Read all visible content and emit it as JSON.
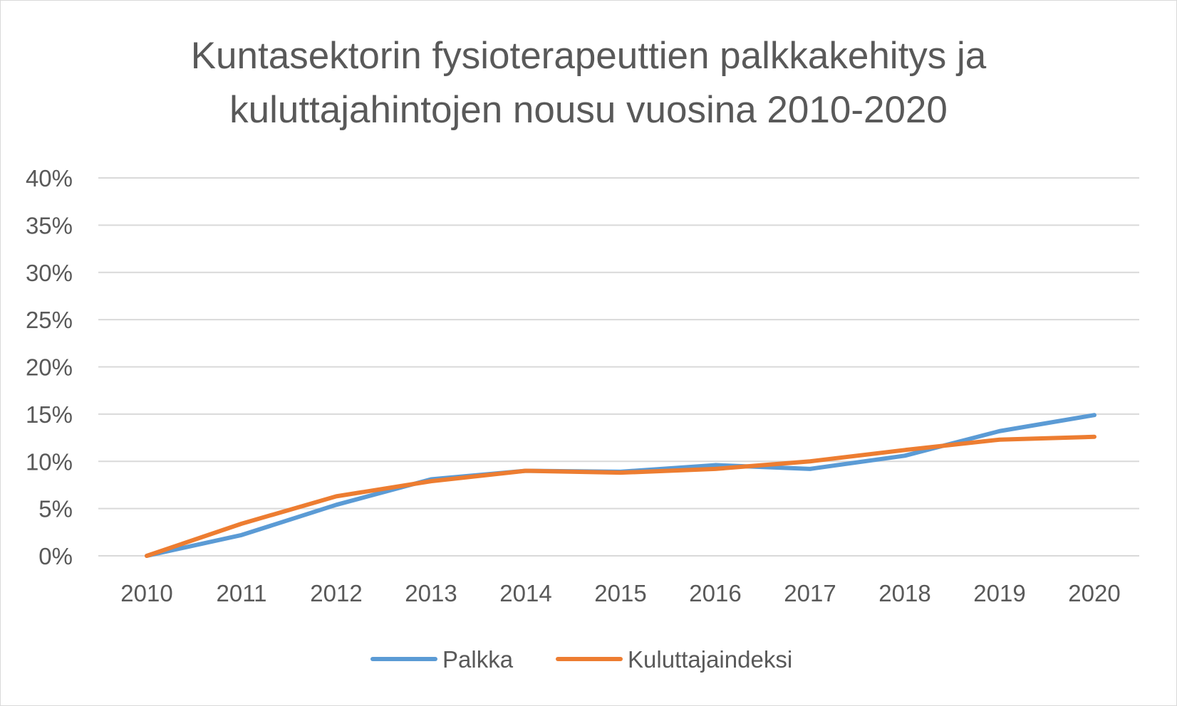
{
  "chart_data": {
    "type": "line",
    "title_lines": [
      "Kuntasektorin fysioterapeuttien palkkakehitys ja",
      "kuluttajahintojen nousu vuosina 2010-2020"
    ],
    "categories": [
      "2010",
      "2011",
      "2012",
      "2013",
      "2014",
      "2015",
      "2016",
      "2017",
      "2018",
      "2019",
      "2020"
    ],
    "y_ticks": [
      "0%",
      "5%",
      "10%",
      "15%",
      "20%",
      "25%",
      "30%",
      "35%",
      "40%"
    ],
    "ylim": [
      0,
      40
    ],
    "y_unit": "%",
    "grid": true,
    "legend_position": "bottom",
    "series": [
      {
        "name": "Palkka",
        "color": "#5b9bd5",
        "values": [
          0,
          2.2,
          5.4,
          8.1,
          9.0,
          8.9,
          9.6,
          9.2,
          10.6,
          13.2,
          14.9
        ]
      },
      {
        "name": "Kuluttajaindeksi",
        "color": "#ed7d31",
        "values": [
          0,
          3.4,
          6.3,
          7.9,
          9.0,
          8.8,
          9.2,
          10.0,
          11.2,
          12.3,
          12.6
        ]
      }
    ]
  }
}
